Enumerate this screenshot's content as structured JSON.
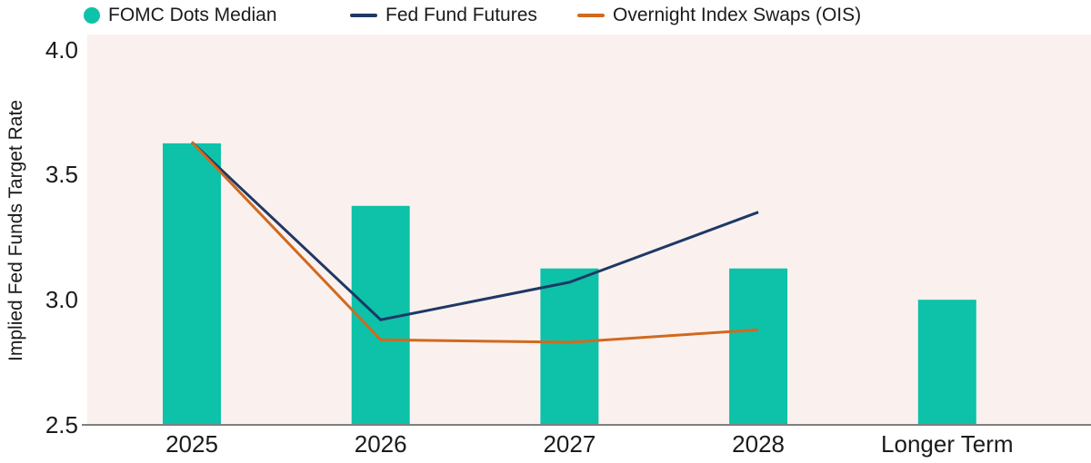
{
  "chart_data": {
    "type": "bar+line",
    "title": "",
    "categories": [
      "2025",
      "2026",
      "2027",
      "2028",
      "Longer Term"
    ],
    "series": [
      {
        "name": "FOMC Dots Median",
        "type": "bar",
        "color": "#0DC2A8",
        "values": [
          3.625,
          3.375,
          3.125,
          3.125,
          3.0
        ]
      },
      {
        "name": "Fed Fund Futures",
        "type": "line",
        "color": "#1F3865",
        "values": [
          3.63,
          2.92,
          3.07,
          3.35,
          null
        ]
      },
      {
        "name": "Overnight Index Swaps (OIS)",
        "type": "line",
        "color": "#D2691E",
        "values": [
          3.63,
          2.84,
          2.83,
          2.88,
          null
        ]
      }
    ],
    "xlabel": "",
    "ylabel": "Implied Fed Funds Target Rate",
    "ylim": [
      2.5,
      4.0
    ],
    "yticks": [
      4.0,
      3.5,
      3.0,
      2.5
    ],
    "grid": false,
    "legend_position": "top",
    "colors": {
      "plot_bg": "#FAF1EF",
      "axis_line": "#7F7F7F",
      "text": "#1B1B1B"
    }
  }
}
